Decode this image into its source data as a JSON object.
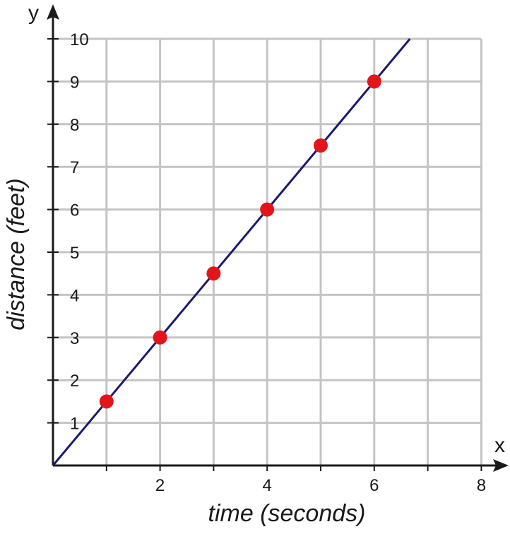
{
  "chart_data": {
    "type": "scatter",
    "title": "",
    "xlabel": "time (seconds)",
    "ylabel": "distance (feet)",
    "x_axis_letter": "x",
    "y_axis_letter": "y",
    "xlim": [
      0,
      8
    ],
    "ylim": [
      0,
      10
    ],
    "x_ticks": [
      2,
      4,
      6,
      8
    ],
    "x_tick_labels": [
      "2",
      "4",
      "6",
      "8"
    ],
    "y_ticks": [
      1,
      2,
      3,
      4,
      5,
      6,
      7,
      8,
      9,
      10
    ],
    "y_tick_labels": [
      "1",
      "2",
      "3",
      "4",
      "5",
      "6",
      "7",
      "8",
      "9",
      "10"
    ],
    "grid": true,
    "points": [
      {
        "x": 1,
        "y": 1.5
      },
      {
        "x": 2,
        "y": 3
      },
      {
        "x": 3,
        "y": 4.5
      },
      {
        "x": 4,
        "y": 6
      },
      {
        "x": 5,
        "y": 7.5
      },
      {
        "x": 6,
        "y": 9
      }
    ],
    "trend_line": {
      "slope": 1.5,
      "intercept": 0
    },
    "colors": {
      "points": "#e3151b",
      "line": "#1a1a6e",
      "grid": "#c4c4c4",
      "axes": "#1a1a1a"
    }
  }
}
